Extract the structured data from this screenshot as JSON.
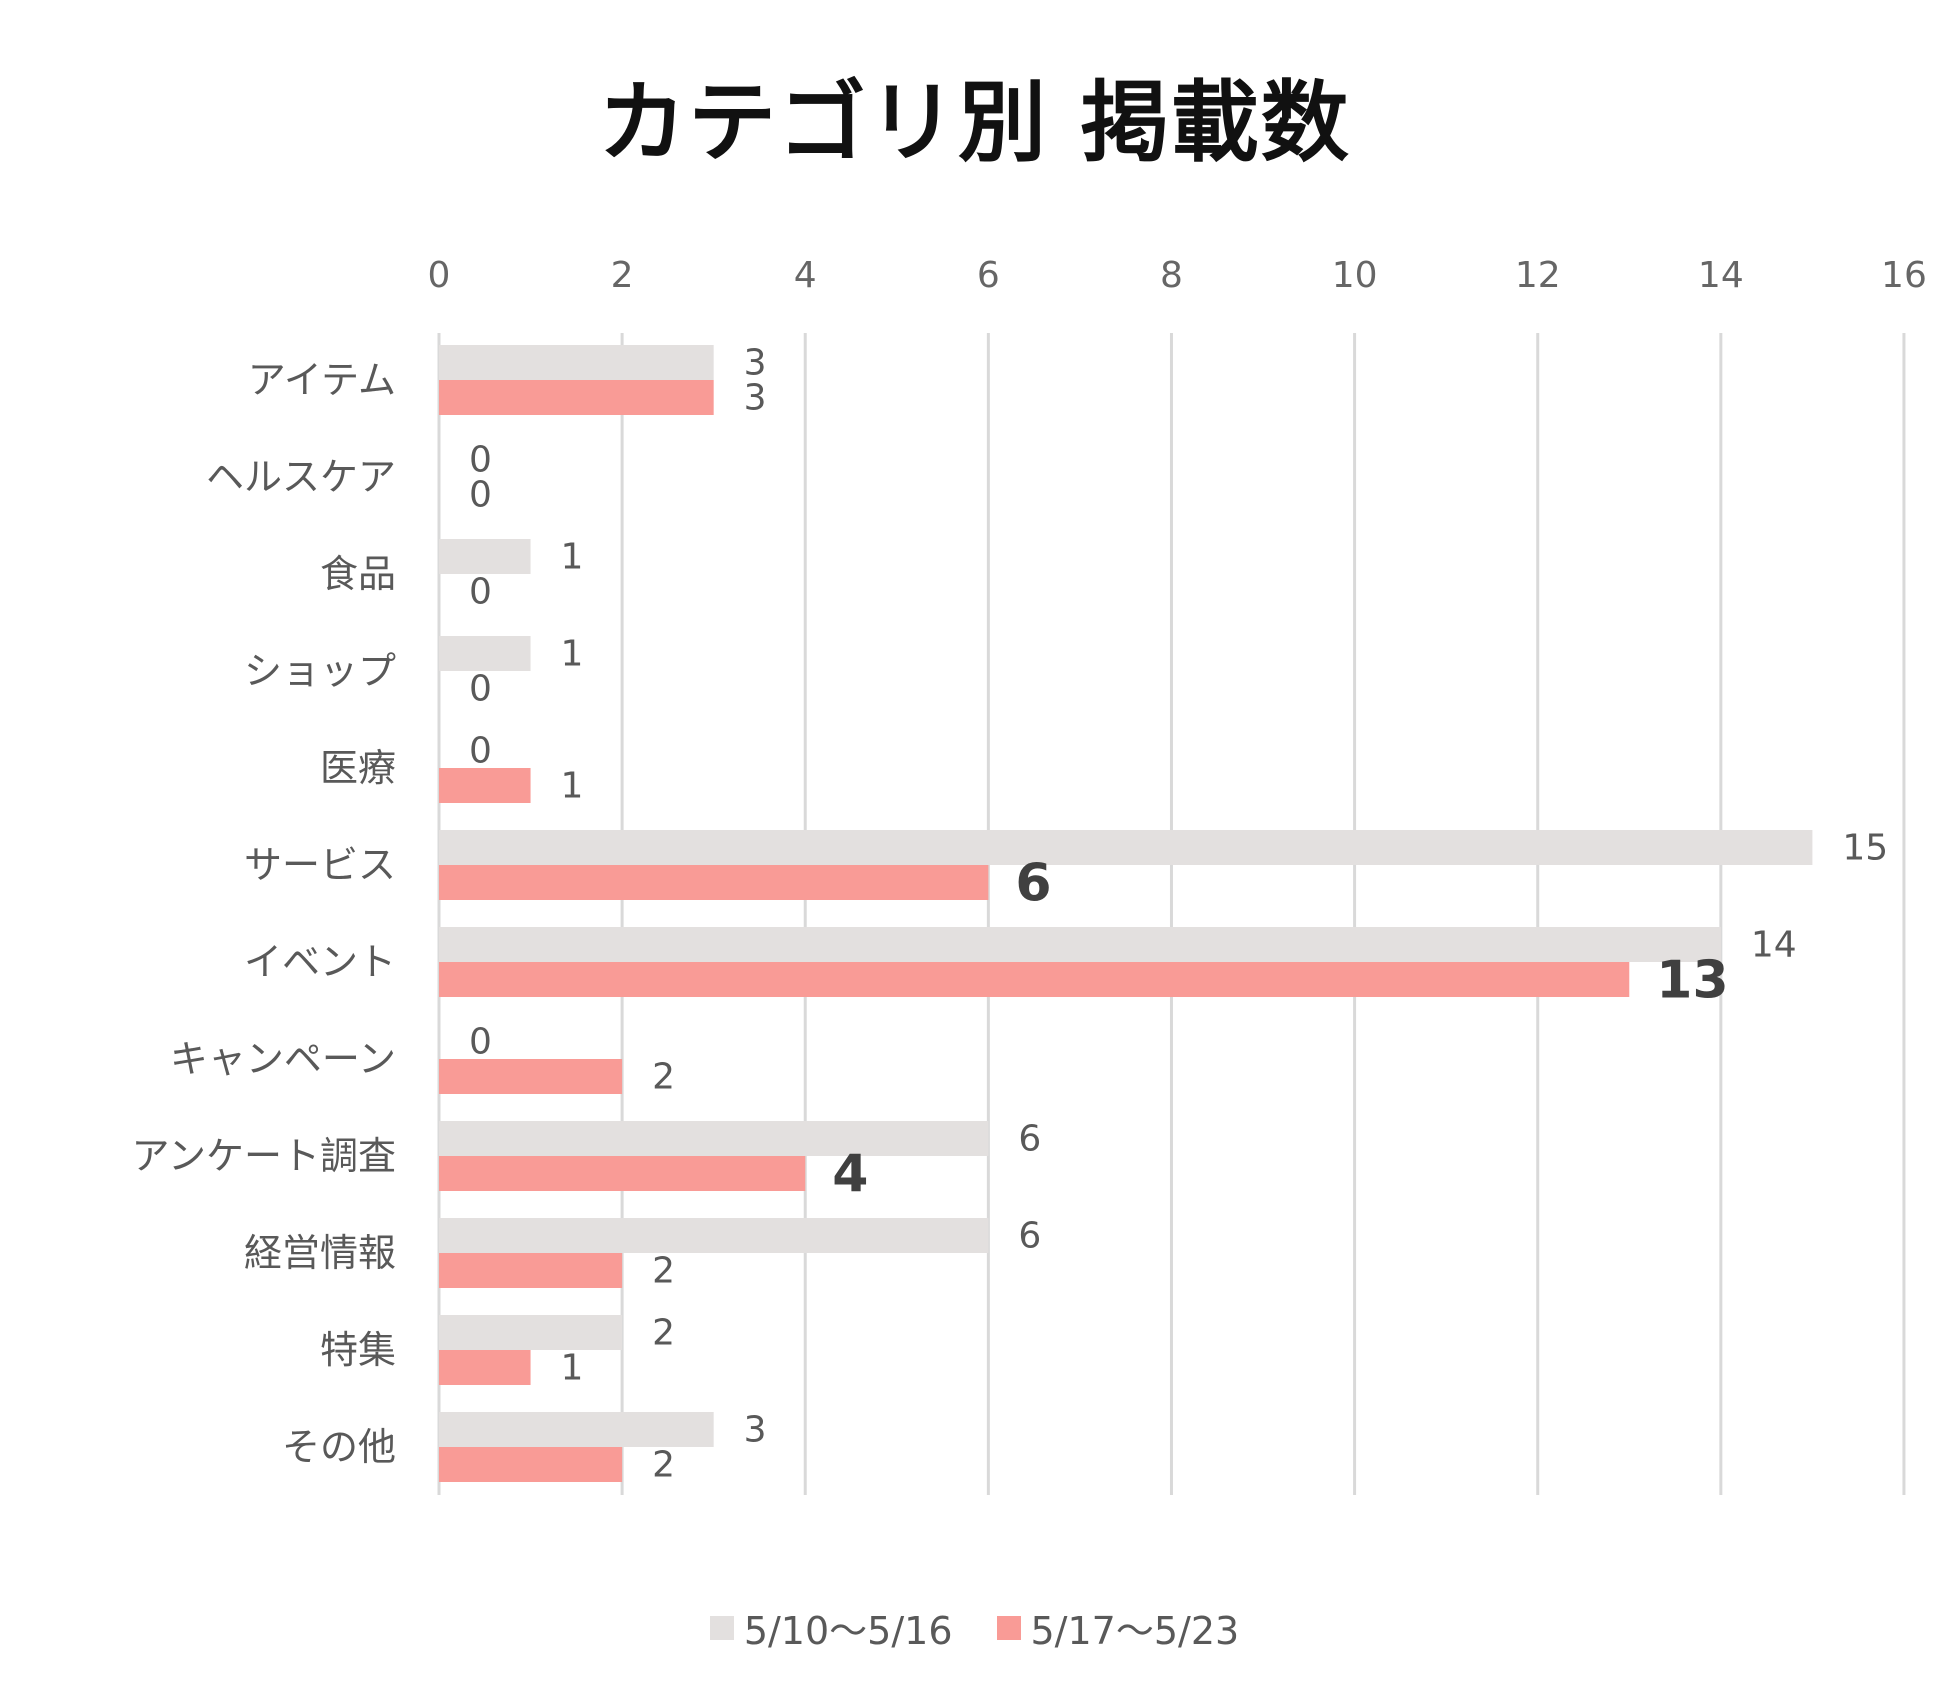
{
  "chart_data": {
    "type": "bar",
    "orientation": "horizontal",
    "title": "カテゴリ別 掲載数",
    "categories": [
      "アイテム",
      "ヘルスケア",
      "食品",
      "ショップ",
      "医療",
      "サービス",
      "イベント",
      "キャンペーン",
      "アンケート調査",
      "経営情報",
      "特集",
      "その他"
    ],
    "series": [
      {
        "name": "5/10〜5/16",
        "values": [
          3,
          0,
          1,
          1,
          0,
          15,
          14,
          0,
          6,
          6,
          2,
          3
        ],
        "color": "#e3e0df"
      },
      {
        "name": "5/17〜5/23",
        "values": [
          3,
          0,
          0,
          0,
          1,
          6,
          13,
          2,
          4,
          2,
          1,
          2
        ],
        "color": "#f99b96",
        "emphasized_labels": [
          6,
          13,
          4
        ]
      }
    ],
    "xlim": [
      0,
      16
    ],
    "x_ticks": [
      0,
      2,
      4,
      6,
      8,
      10,
      12,
      14,
      16
    ],
    "x_axis_position": "top",
    "grid": true,
    "legend_position": "bottom"
  }
}
